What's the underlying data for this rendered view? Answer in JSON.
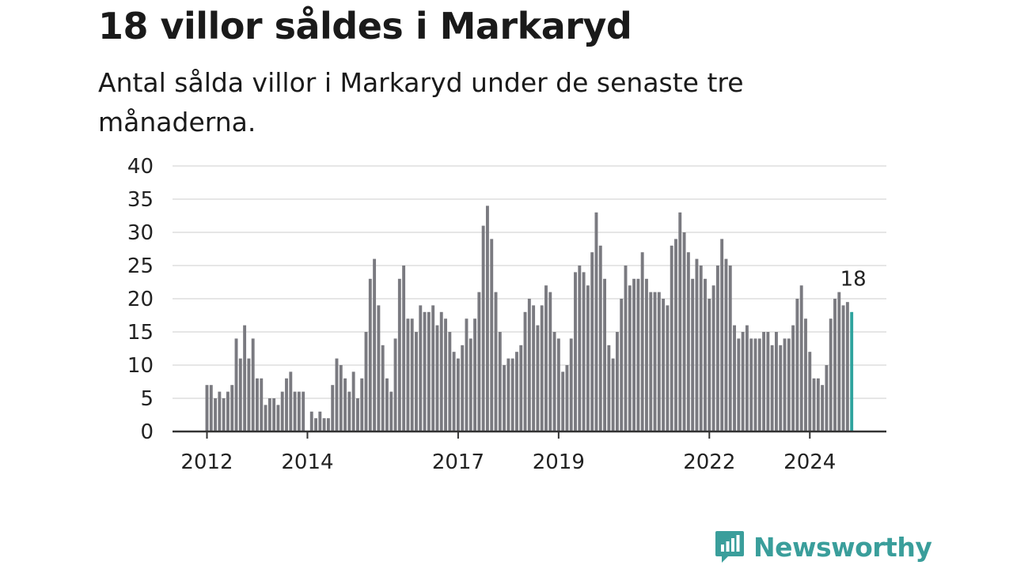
{
  "title": "18 villor såldes i Markaryd",
  "subtitle": "Antal sålda villor i Markaryd under de senaste tre månaderna.",
  "brand": {
    "name": "Newsworthy",
    "color": "#3a9e9b"
  },
  "colors": {
    "bar": "#7a7a80",
    "highlight": "#2fa39e",
    "grid": "#dddddd",
    "axis": "#333333"
  },
  "chart_data": {
    "type": "bar",
    "title": "18 villor såldes i Markaryd",
    "subtitle": "Antal sålda villor i Markaryd under de senaste tre månaderna.",
    "xlabel": "",
    "ylabel": "",
    "ylim": [
      0,
      40
    ],
    "yticks": [
      0,
      5,
      10,
      15,
      20,
      25,
      30,
      35,
      40
    ],
    "xticks": [
      "2012",
      "2014",
      "2017",
      "2019",
      "2022",
      "2024"
    ],
    "grid": true,
    "start": "2012-01",
    "values": [
      7,
      7,
      5,
      6,
      5,
      6,
      7,
      14,
      11,
      16,
      11,
      14,
      8,
      8,
      4,
      5,
      5,
      4,
      6,
      8,
      9,
      6,
      6,
      6,
      null,
      3,
      2,
      3,
      2,
      2,
      7,
      11,
      10,
      8,
      6,
      9,
      5,
      8,
      15,
      23,
      26,
      19,
      13,
      8,
      6,
      14,
      23,
      25,
      17,
      17,
      15,
      19,
      18,
      18,
      19,
      16,
      18,
      17,
      15,
      12,
      11,
      13,
      17,
      14,
      17,
      21,
      31,
      34,
      29,
      21,
      15,
      10,
      11,
      11,
      12,
      13,
      18,
      20,
      19,
      16,
      19,
      22,
      21,
      15,
      14,
      9,
      10,
      14,
      24,
      25,
      24,
      22,
      27,
      33,
      28,
      23,
      13,
      11,
      15,
      20,
      25,
      22,
      23,
      23,
      27,
      23,
      21,
      21,
      21,
      20,
      19,
      28,
      29,
      33,
      30,
      27,
      23,
      26,
      25,
      23,
      20,
      22,
      25,
      29,
      26,
      25,
      16,
      14,
      15,
      16,
      14,
      14,
      14,
      15,
      15,
      13,
      15,
      13,
      14,
      14,
      16,
      20,
      22,
      17,
      12,
      8,
      8,
      7,
      10,
      17,
      20,
      21,
      19,
      19.5,
      18
    ],
    "highlight": {
      "label": "18",
      "value": 18
    }
  }
}
